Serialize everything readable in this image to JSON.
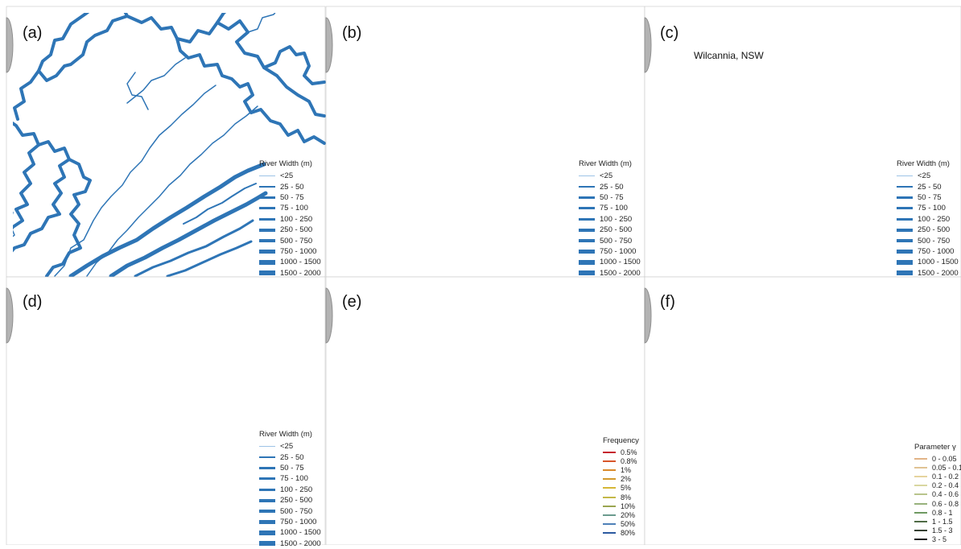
{
  "panels": [
    {
      "id": "a",
      "label": "(a)",
      "mode": "width",
      "widthScale": 1.0
    },
    {
      "id": "b",
      "label": "(b)",
      "mode": "width",
      "widthScale": 0.0
    },
    {
      "id": "c",
      "label": "(c)",
      "mode": "width",
      "widthScale": 0.0
    },
    {
      "id": "d",
      "label": "(d)",
      "mode": "width",
      "widthScale": 0.35
    },
    {
      "id": "e",
      "label": "(e)",
      "mode": "frequency"
    },
    {
      "id": "f",
      "label": "(f)",
      "mode": "param"
    }
  ],
  "width_legend": {
    "title": "River Width (m)",
    "entries": [
      "<25",
      "25 - 50",
      "50 - 75",
      "75 - 100",
      "100 - 250",
      "250 - 500",
      "500 - 750",
      "750 - 1000",
      "1000 - 1500",
      "1500 - 2000"
    ]
  },
  "frequency_legend": {
    "title": "Frequency",
    "entries": [
      {
        "label": "0.5%",
        "color": "#c6262e"
      },
      {
        "label": "0.8%",
        "color": "#d8562a"
      },
      {
        "label": "1%",
        "color": "#d98a2b"
      },
      {
        "label": "2%",
        "color": "#d39a2e"
      },
      {
        "label": "5%",
        "color": "#d6b737"
      },
      {
        "label": "8%",
        "color": "#c4b848"
      },
      {
        "label": "10%",
        "color": "#9aa550"
      },
      {
        "label": "20%",
        "color": "#6b9b8e"
      },
      {
        "label": "50%",
        "color": "#4e80b8"
      },
      {
        "label": "80%",
        "color": "#2c5aa0"
      }
    ]
  },
  "param_legend": {
    "title": "Parameter γ",
    "entries": [
      {
        "label": "0 - 0.05",
        "color": "#e2b487"
      },
      {
        "label": "0.05 - 0.1",
        "color": "#e0c394"
      },
      {
        "label": "0.1 - 0.2",
        "color": "#e6d49e"
      },
      {
        "label": "0.2 - 0.4",
        "color": "#d9d7a0"
      },
      {
        "label": "0.4 - 0.6",
        "color": "#b8c48c"
      },
      {
        "label": "0.6 - 0.8",
        "color": "#98b27c"
      },
      {
        "label": "0.8 - 1",
        "color": "#6f9a62"
      },
      {
        "label": "1 - 1.5",
        "color": "#4f6b46"
      },
      {
        "label": "1.5 - 3",
        "color": "#353f31"
      },
      {
        "label": "3 - 5",
        "color": "#1b1b1b"
      }
    ]
  },
  "place_marker": {
    "name": "Wilcannia, NSW",
    "color": "#c00000"
  },
  "colors": {
    "river": "#2e75b6",
    "river_light": "#9dc3e6",
    "frame": "#9a9a9a",
    "shadow": "#b3b3b3"
  }
}
